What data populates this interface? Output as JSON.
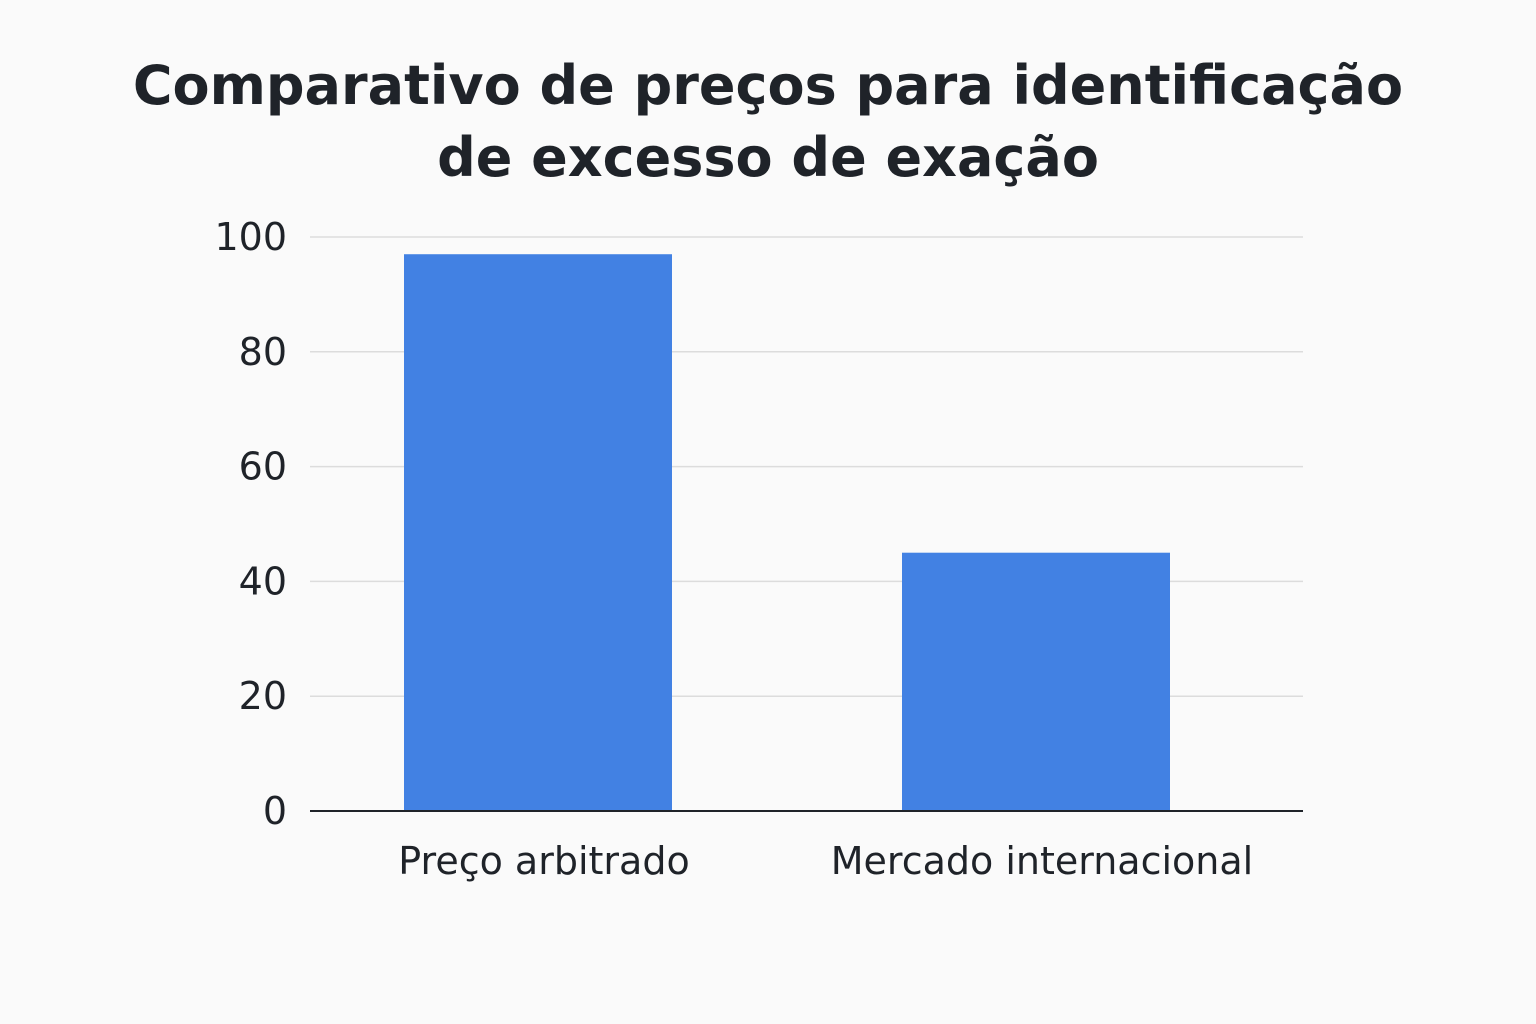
{
  "chart_data": {
    "type": "bar",
    "title_lines": [
      "Comparativo de preços para identificação",
      "de excesso de exação"
    ],
    "categories": [
      "Preço arbitrado",
      "Mercado internacional"
    ],
    "values": [
      97,
      45
    ],
    "xlabel": "",
    "ylabel": "",
    "ylim": [
      0,
      100
    ],
    "yticks": [
      "0",
      "20",
      "40",
      "60",
      "80",
      "100"
    ],
    "grid": true,
    "legend": "none",
    "colors": {
      "bar": "#4281e3",
      "grid": "#dcdcdc",
      "axis": "#1f2329",
      "text": "#1f2329",
      "background": "#fafafa"
    }
  }
}
